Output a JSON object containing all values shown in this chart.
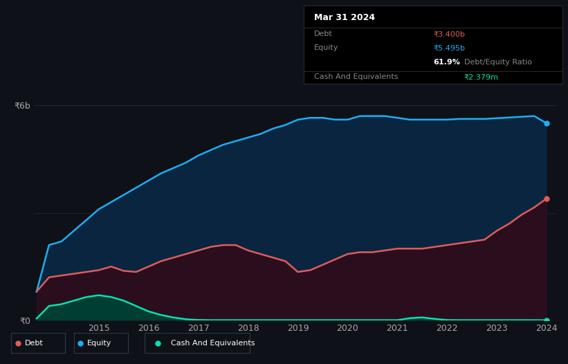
{
  "background_color": "#0e1117",
  "plot_bg_color": "#0e1117",
  "ylim": [
    0,
    6500000000
  ],
  "grid_color": "#1e2a3a",
  "equity_color": "#1ab0f5",
  "debt_color": "#e05c5c",
  "cash_color": "#00e5b0",
  "equity_fill": "#0a2540",
  "debt_fill": "#2a0e1e",
  "cash_fill": "#003d33",
  "x_tick_labels": [
    "2015",
    "2016",
    "2017",
    "2018",
    "2019",
    "2020",
    "2021",
    "2022",
    "2023",
    "2024"
  ],
  "x_tick_positions": [
    2015,
    2016,
    2017,
    2018,
    2019,
    2020,
    2021,
    2022,
    2023,
    2024
  ],
  "years": [
    2013.75,
    2014.0,
    2014.25,
    2014.5,
    2014.75,
    2015.0,
    2015.25,
    2015.5,
    2015.75,
    2016.0,
    2016.25,
    2016.5,
    2016.75,
    2017.0,
    2017.25,
    2017.5,
    2017.75,
    2018.0,
    2018.25,
    2018.5,
    2018.75,
    2019.0,
    2019.25,
    2019.5,
    2019.75,
    2020.0,
    2020.25,
    2020.5,
    2020.75,
    2021.0,
    2021.25,
    2021.5,
    2021.75,
    2022.0,
    2022.25,
    2022.5,
    2022.75,
    2023.0,
    2023.25,
    2023.5,
    2023.75,
    2024.0
  ],
  "equity_values": [
    800000000,
    2100000000,
    2200000000,
    2500000000,
    2800000000,
    3100000000,
    3300000000,
    3500000000,
    3700000000,
    3900000000,
    4100000000,
    4250000000,
    4400000000,
    4600000000,
    4750000000,
    4900000000,
    5000000000,
    5100000000,
    5200000000,
    5350000000,
    5450000000,
    5600000000,
    5650000000,
    5650000000,
    5600000000,
    5600000000,
    5700000000,
    5700000000,
    5700000000,
    5650000000,
    5600000000,
    5600000000,
    5600000000,
    5600000000,
    5620000000,
    5620000000,
    5620000000,
    5640000000,
    5660000000,
    5680000000,
    5700000000,
    5495000000
  ],
  "debt_values": [
    800000000,
    1200000000,
    1250000000,
    1300000000,
    1350000000,
    1400000000,
    1500000000,
    1380000000,
    1350000000,
    1500000000,
    1650000000,
    1750000000,
    1850000000,
    1950000000,
    2050000000,
    2100000000,
    2100000000,
    1950000000,
    1850000000,
    1750000000,
    1650000000,
    1350000000,
    1400000000,
    1550000000,
    1700000000,
    1850000000,
    1900000000,
    1900000000,
    1950000000,
    2000000000,
    2000000000,
    2000000000,
    2050000000,
    2100000000,
    2150000000,
    2200000000,
    2250000000,
    2500000000,
    2700000000,
    2950000000,
    3150000000,
    3400000000
  ],
  "cash_values": [
    50000000,
    400000000,
    450000000,
    550000000,
    650000000,
    700000000,
    650000000,
    550000000,
    400000000,
    250000000,
    150000000,
    80000000,
    30000000,
    10000000,
    5000000,
    5000000,
    5000000,
    5000000,
    5000000,
    5000000,
    5000000,
    5000000,
    5000000,
    5000000,
    5000000,
    5000000,
    5000000,
    5000000,
    5000000,
    5000000,
    60000000,
    80000000,
    40000000,
    8000000,
    5000000,
    5000000,
    5000000,
    5000000,
    5000000,
    5000000,
    5000000,
    2379000
  ],
  "tooltip": {
    "date": "Mar 31 2024",
    "debt_label": "Debt",
    "debt_value": "₹3.400b",
    "debt_color": "#e05c5c",
    "equity_label": "Equity",
    "equity_value": "₹5.495b",
    "equity_color": "#1ab0f5",
    "ratio_pct": "61.9%",
    "ratio_label": "Debt/Equity Ratio",
    "cash_label": "Cash And Equivalents",
    "cash_value": "₹2.379m",
    "cash_color": "#00e5b0"
  },
  "legend": [
    {
      "label": "Debt",
      "color": "#e05c5c"
    },
    {
      "label": "Equity",
      "color": "#1ab0f5"
    },
    {
      "label": "Cash And Equivalents",
      "color": "#00e5b0"
    }
  ]
}
